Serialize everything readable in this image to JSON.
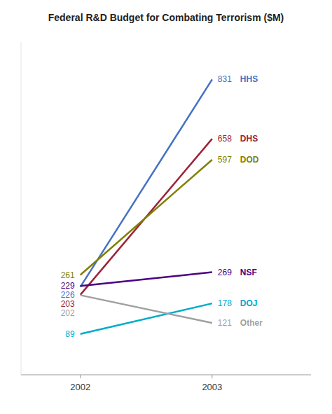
{
  "chart_data": {
    "type": "line",
    "title": "Federal R&D Budget for Combating Terrorism ($M)",
    "x": [
      2002,
      2003
    ],
    "series": [
      {
        "name": "HHS",
        "color": "#4472C4",
        "values": [
          226,
          831
        ]
      },
      {
        "name": "DHS",
        "color": "#9B2335",
        "values": [
          203,
          658
        ]
      },
      {
        "name": "DOD",
        "color": "#808000",
        "values": [
          261,
          597
        ]
      },
      {
        "name": "NSF",
        "color": "#4B0082",
        "values": [
          229,
          269
        ]
      },
      {
        "name": "DOJ",
        "color": "#00AACC",
        "values": [
          89,
          178
        ]
      },
      {
        "name": "Other",
        "color": "#A0A0A0",
        "values": [
          202,
          121
        ]
      }
    ],
    "xlim": [
      2001.55,
      2003.75
    ],
    "ylim": [
      -30,
      940
    ],
    "xticks": [
      2002,
      2003
    ],
    "yticks": [],
    "tick_labels": "x",
    "data_labels": true,
    "grid": false
  }
}
